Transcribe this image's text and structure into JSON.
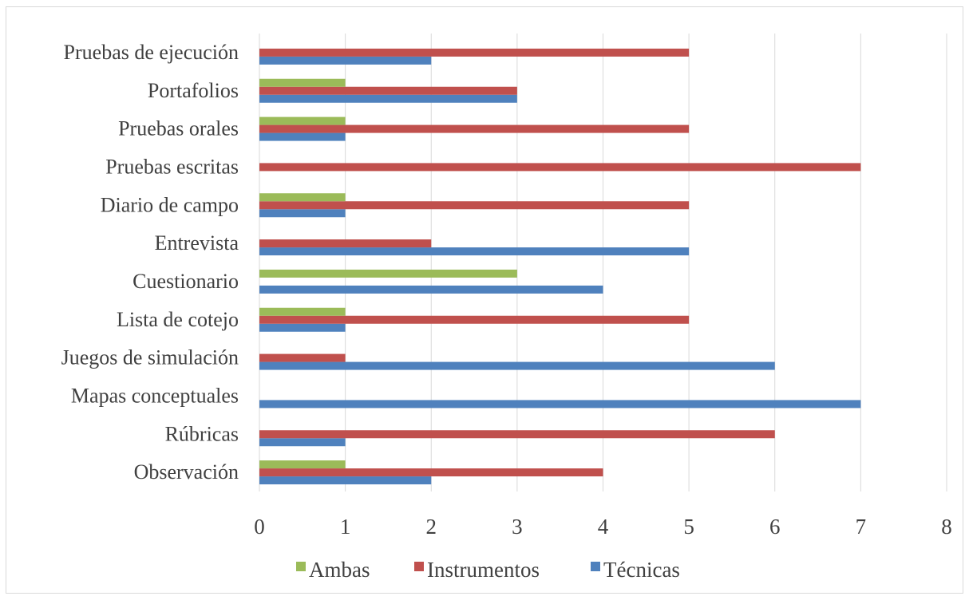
{
  "chart_data": {
    "type": "bar",
    "orientation": "horizontal",
    "title": "",
    "xlabel": "",
    "ylabel": "",
    "xlim": [
      0,
      8
    ],
    "x_ticks": [
      "0",
      "1",
      "2",
      "3",
      "4",
      "5",
      "6",
      "7",
      "8"
    ],
    "grid": "vertical",
    "legend_position": "bottom",
    "categories": [
      "Observación",
      "Rúbricas",
      "Mapas conceptuales",
      "Juegos de simulación",
      "Lista de cotejo",
      "Cuestionario",
      "Entrevista",
      "Diario de campo",
      "Pruebas escritas",
      "Pruebas orales",
      "Portafolios",
      "Pruebas de ejecución"
    ],
    "series": [
      {
        "name": "Técnicas",
        "color": "#4f81bd",
        "values": [
          2,
          1,
          7,
          6,
          1,
          4,
          5,
          1,
          0,
          1,
          3,
          2
        ]
      },
      {
        "name": "Instrumentos",
        "color": "#c0504d",
        "values": [
          4,
          6,
          0,
          1,
          5,
          0,
          2,
          5,
          7,
          5,
          3,
          5
        ]
      },
      {
        "name": "Ambas",
        "color": "#9bbb59",
        "values": [
          1,
          0,
          0,
          0,
          1,
          3,
          0,
          1,
          0,
          1,
          1,
          0
        ]
      }
    ],
    "legend_order": [
      "Ambas",
      "Instrumentos",
      "Técnicas"
    ]
  }
}
